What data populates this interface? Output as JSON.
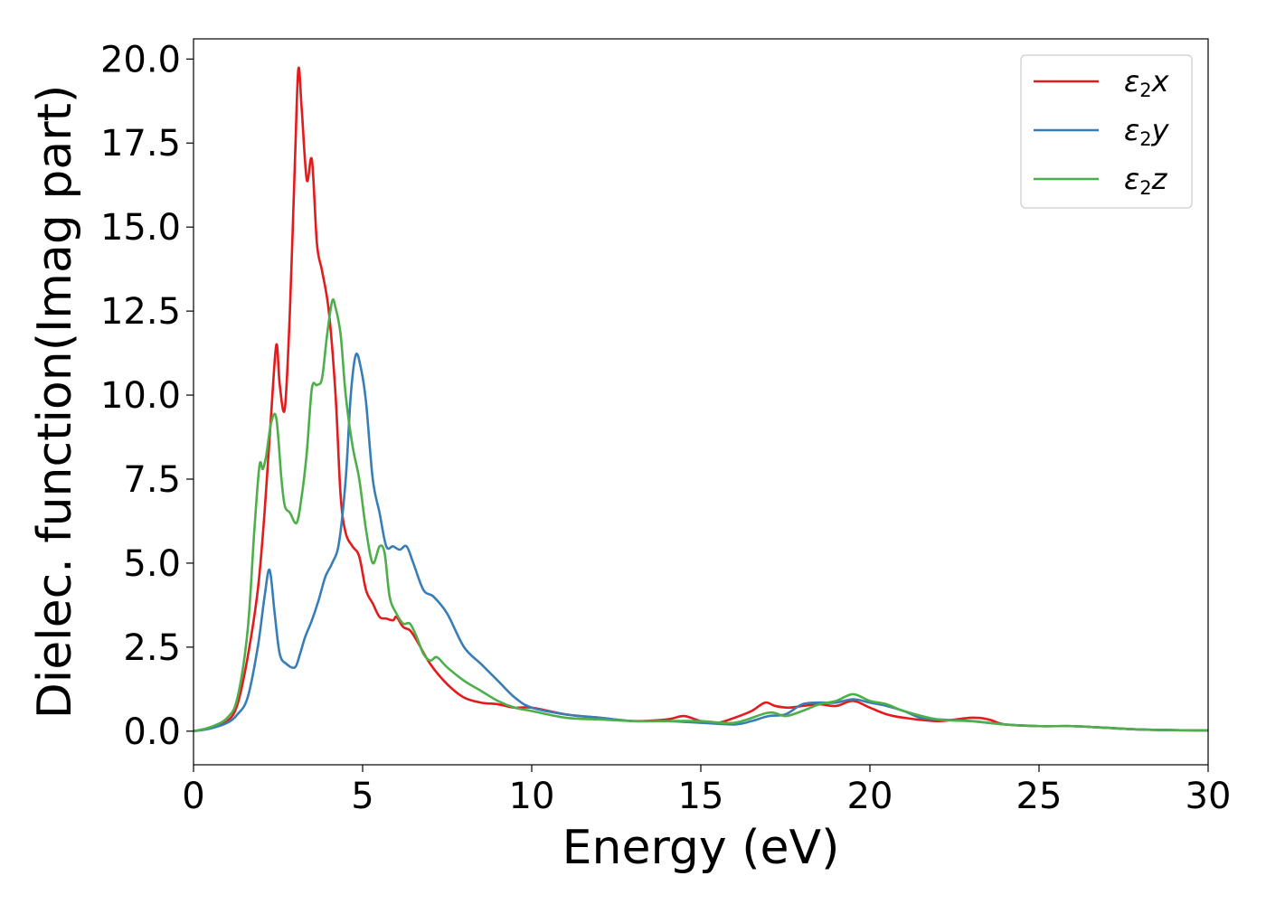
{
  "chart_data": {
    "type": "line",
    "xlabel": "Energy (eV)",
    "ylabel": "Dielec. function(Imag part)",
    "xlim": [
      0,
      30
    ],
    "ylim": [
      -1.0,
      20.6
    ],
    "xticks": [
      0,
      5,
      10,
      15,
      20,
      25,
      30
    ],
    "xtick_labels": [
      "0",
      "5",
      "10",
      "15",
      "20",
      "25",
      "30"
    ],
    "yticks": [
      0,
      2.5,
      5,
      7.5,
      10,
      12.5,
      15,
      17.5,
      20
    ],
    "ytick_labels": [
      "0.0",
      "2.5",
      "5.0",
      "7.5",
      "10.0",
      "12.5",
      "15.0",
      "17.5",
      "20.0"
    ],
    "grid": false,
    "legend_position": "top-right",
    "series": [
      {
        "name": "ε2x",
        "legend_symbol": "ε",
        "legend_sub": "2",
        "legend_var": "x",
        "color": "#e41a1c",
        "x": [
          0,
          0.5,
          1.0,
          1.3,
          1.6,
          1.9,
          2.1,
          2.3,
          2.45,
          2.55,
          2.7,
          2.85,
          3.0,
          3.1,
          3.2,
          3.35,
          3.5,
          3.65,
          3.8,
          4.0,
          4.2,
          4.35,
          4.5,
          4.7,
          4.9,
          5.1,
          5.3,
          5.5,
          5.7,
          5.9,
          6.0,
          6.2,
          6.4,
          6.6,
          7.0,
          7.5,
          8.0,
          8.5,
          9.0,
          9.5,
          10.0,
          11.0,
          12.0,
          13.0,
          14.0,
          14.5,
          15.0,
          15.5,
          16.0,
          16.5,
          16.9,
          17.2,
          17.6,
          18.0,
          18.5,
          19.0,
          19.5,
          20.0,
          20.5,
          21.0,
          22.0,
          23.0,
          23.5,
          24.0,
          25.0,
          26.0,
          27.0,
          28.0,
          29.0,
          30.0
        ],
        "y": [
          0,
          0.1,
          0.3,
          0.8,
          2.2,
          4.2,
          6.5,
          9.5,
          11.5,
          10.3,
          9.6,
          12.5,
          17.0,
          19.7,
          18.5,
          16.4,
          17.0,
          14.5,
          13.7,
          12.5,
          10.0,
          7.0,
          5.9,
          5.5,
          5.2,
          4.2,
          3.8,
          3.4,
          3.35,
          3.3,
          3.4,
          3.1,
          3.0,
          2.7,
          2.0,
          1.4,
          1.0,
          0.85,
          0.8,
          0.7,
          0.7,
          0.5,
          0.4,
          0.3,
          0.35,
          0.45,
          0.3,
          0.25,
          0.4,
          0.6,
          0.85,
          0.75,
          0.7,
          0.75,
          0.8,
          0.75,
          0.9,
          0.7,
          0.5,
          0.4,
          0.3,
          0.4,
          0.35,
          0.2,
          0.15,
          0.15,
          0.1,
          0.05,
          0.03,
          0.02
        ]
      },
      {
        "name": "ε2y",
        "legend_symbol": "ε",
        "legend_sub": "2",
        "legend_var": "y",
        "color": "#377eb8",
        "x": [
          0,
          0.5,
          1.0,
          1.3,
          1.6,
          1.9,
          2.1,
          2.25,
          2.4,
          2.55,
          2.75,
          3.0,
          3.15,
          3.3,
          3.5,
          3.7,
          3.9,
          4.1,
          4.3,
          4.5,
          4.65,
          4.8,
          4.95,
          5.1,
          5.3,
          5.5,
          5.7,
          5.9,
          6.1,
          6.3,
          6.5,
          6.8,
          7.1,
          7.5,
          8.0,
          8.5,
          9.0,
          9.5,
          10.0,
          11.0,
          12.0,
          13.0,
          14.0,
          15.0,
          16.0,
          16.5,
          17.0,
          17.5,
          18.0,
          18.5,
          19.0,
          19.5,
          20.0,
          20.5,
          21.0,
          21.5,
          22.0,
          23.0,
          24.0,
          25.0,
          26.0,
          27.0,
          28.0,
          29.0,
          30.0
        ],
        "y": [
          0,
          0.08,
          0.25,
          0.5,
          1.0,
          2.5,
          4.0,
          4.8,
          3.5,
          2.3,
          2.0,
          1.9,
          2.3,
          2.8,
          3.3,
          3.9,
          4.6,
          5.0,
          5.6,
          7.5,
          10.0,
          11.2,
          10.8,
          9.8,
          7.5,
          6.5,
          5.5,
          5.5,
          5.4,
          5.5,
          5.0,
          4.2,
          4.0,
          3.5,
          2.5,
          2.0,
          1.5,
          1.0,
          0.7,
          0.5,
          0.4,
          0.3,
          0.3,
          0.25,
          0.2,
          0.3,
          0.45,
          0.5,
          0.8,
          0.85,
          0.85,
          0.95,
          0.85,
          0.75,
          0.6,
          0.4,
          0.35,
          0.3,
          0.2,
          0.15,
          0.15,
          0.1,
          0.05,
          0.03,
          0.02
        ]
      },
      {
        "name": "ε2z",
        "legend_symbol": "ε",
        "legend_sub": "2",
        "legend_var": "z",
        "color": "#4daf4a",
        "x": [
          0,
          0.5,
          1.0,
          1.3,
          1.6,
          1.8,
          1.95,
          2.05,
          2.15,
          2.3,
          2.45,
          2.6,
          2.7,
          2.85,
          3.05,
          3.2,
          3.35,
          3.5,
          3.65,
          3.8,
          3.95,
          4.1,
          4.2,
          4.35,
          4.5,
          4.7,
          4.9,
          5.1,
          5.3,
          5.5,
          5.65,
          5.8,
          6.0,
          6.2,
          6.4,
          6.6,
          6.8,
          7.0,
          7.2,
          7.5,
          8.0,
          8.5,
          9.0,
          9.5,
          10.0,
          11.0,
          12.0,
          13.0,
          14.0,
          15.0,
          16.0,
          17.0,
          17.5,
          18.0,
          18.5,
          19.0,
          19.5,
          20.0,
          20.5,
          21.0,
          22.0,
          23.0,
          24.0,
          25.0,
          26.0,
          27.0,
          28.0,
          29.0,
          30.0
        ],
        "y": [
          0,
          0.12,
          0.4,
          1.0,
          3.0,
          6.0,
          7.9,
          7.8,
          8.2,
          9.2,
          9.3,
          7.5,
          6.7,
          6.5,
          6.2,
          7.0,
          8.3,
          10.2,
          10.3,
          10.5,
          11.8,
          12.8,
          12.6,
          11.8,
          10.0,
          8.5,
          7.5,
          6.0,
          5.0,
          5.5,
          5.3,
          4.0,
          3.5,
          3.2,
          3.2,
          2.8,
          2.3,
          2.1,
          2.2,
          1.9,
          1.5,
          1.2,
          0.9,
          0.7,
          0.6,
          0.4,
          0.35,
          0.3,
          0.3,
          0.3,
          0.25,
          0.55,
          0.45,
          0.6,
          0.8,
          0.9,
          1.1,
          0.9,
          0.8,
          0.6,
          0.35,
          0.3,
          0.2,
          0.15,
          0.15,
          0.1,
          0.05,
          0.03,
          0.02
        ]
      }
    ]
  }
}
